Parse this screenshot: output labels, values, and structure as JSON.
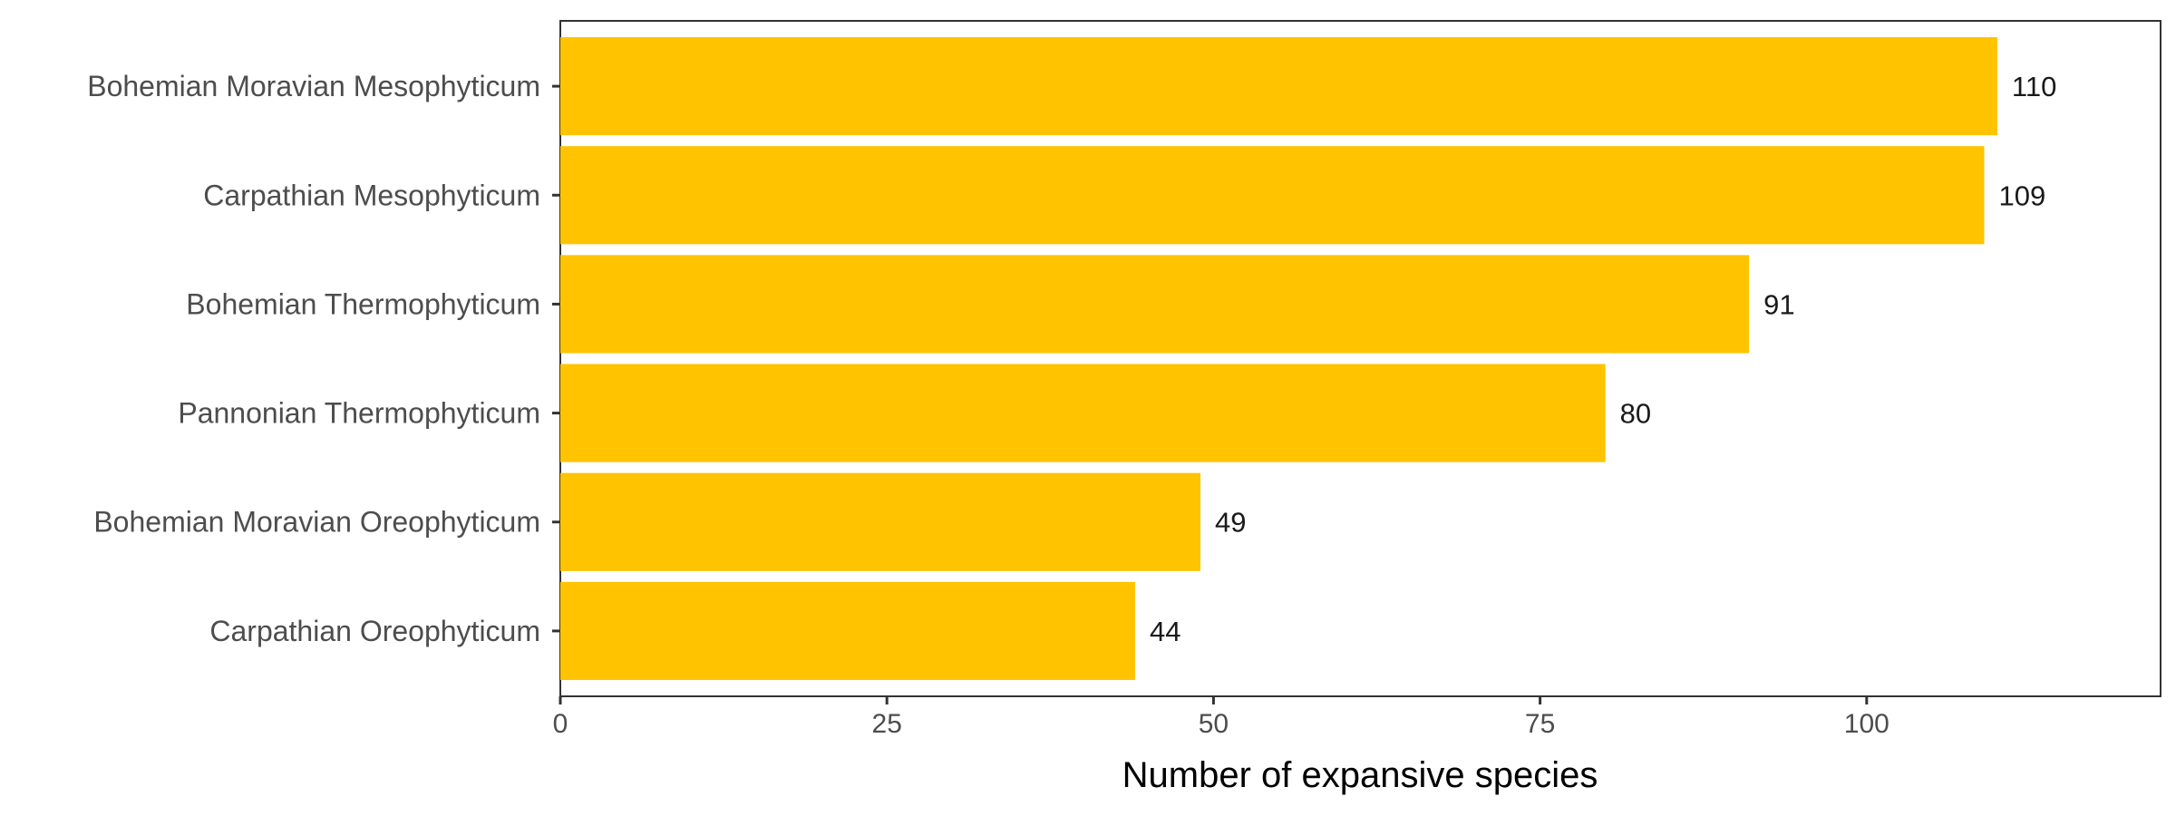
{
  "chart_data": {
    "type": "bar",
    "orientation": "horizontal",
    "categories": [
      "Bohemian Moravian Mesophyticum",
      "Carpathian Mesophyticum",
      "Bohemian Thermophyticum",
      "Pannonian Thermophyticum",
      "Bohemian Moravian Oreophyticum",
      "Carpathian Oreophyticum"
    ],
    "values": [
      110,
      109,
      91,
      80,
      49,
      44
    ],
    "data_labels": [
      "110",
      "109",
      "91",
      "80",
      "49",
      "44"
    ],
    "title": "",
    "xlabel": "Number of expansive species",
    "ylabel": "",
    "xlim": [
      0,
      122.5
    ],
    "xticks": [
      0,
      25,
      50,
      75,
      100
    ],
    "xtick_labels": [
      "0",
      "25",
      "50",
      "75",
      "100"
    ],
    "grid": false,
    "legend": "none",
    "bar_color": "#FFC300"
  }
}
